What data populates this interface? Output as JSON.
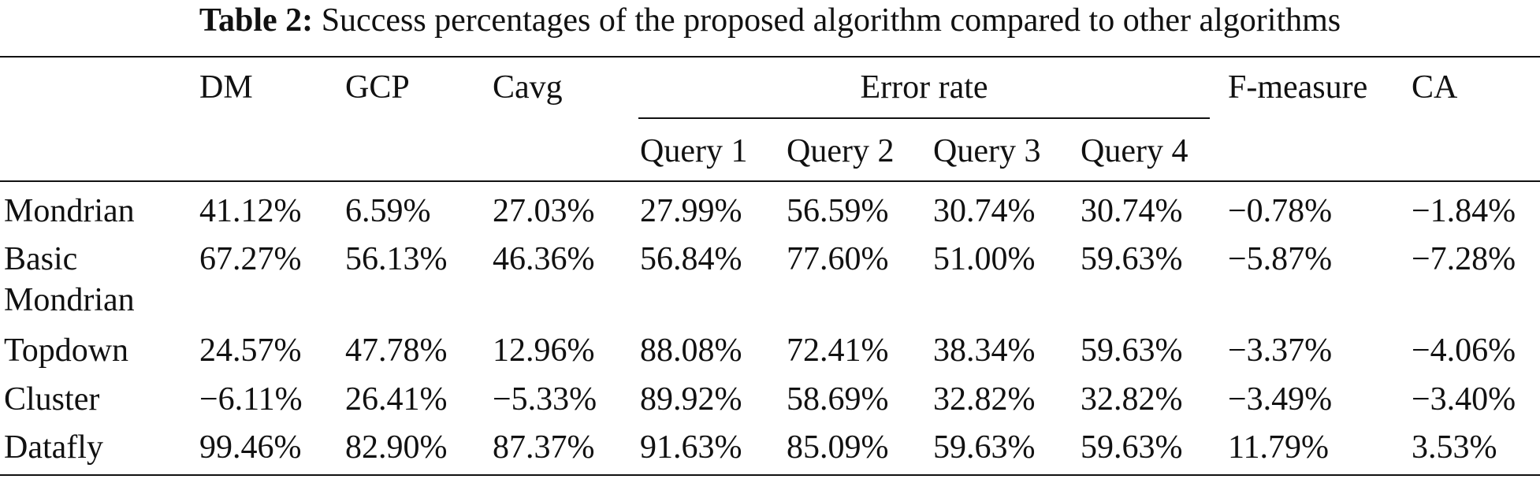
{
  "caption": {
    "label": "Table 2:",
    "text": "Success percentages of the proposed algorithm compared to other algorithms"
  },
  "headers": {
    "dm": "DM",
    "gcp": "GCP",
    "cavg": "Cavg",
    "error_rate": "Error rate",
    "f_measure": "F-measure",
    "ca": "CA",
    "queries": [
      "Query 1",
      "Query 2",
      "Query 3",
      "Query 4"
    ]
  },
  "rows": [
    {
      "name_lines": [
        "Mondrian"
      ],
      "cells": [
        "41.12%",
        "6.59%",
        "27.03%",
        "27.99%",
        "56.59%",
        "30.74%",
        "30.74%",
        "−0.78%",
        "−1.84%"
      ]
    },
    {
      "name_lines": [
        "Basic",
        "Mondrian"
      ],
      "cells": [
        "67.27%",
        "56.13%",
        "46.36%",
        "56.84%",
        "77.60%",
        "51.00%",
        "59.63%",
        "−5.87%",
        "−7.28%"
      ]
    },
    {
      "name_lines": [
        "Topdown"
      ],
      "cells": [
        "24.57%",
        "47.78%",
        "12.96%",
        "88.08%",
        "72.41%",
        "38.34%",
        "59.63%",
        "−3.37%",
        "−4.06%"
      ]
    },
    {
      "name_lines": [
        "Cluster"
      ],
      "cells": [
        "−6.11%",
        "26.41%",
        "−5.33%",
        "89.92%",
        "58.69%",
        "32.82%",
        "32.82%",
        "−3.49%",
        "−3.40%"
      ]
    },
    {
      "name_lines": [
        "Datafly"
      ],
      "cells": [
        "99.46%",
        "82.90%",
        "87.37%",
        "91.63%",
        "85.09%",
        "59.63%",
        "59.63%",
        "11.79%",
        "3.53%"
      ]
    }
  ]
}
